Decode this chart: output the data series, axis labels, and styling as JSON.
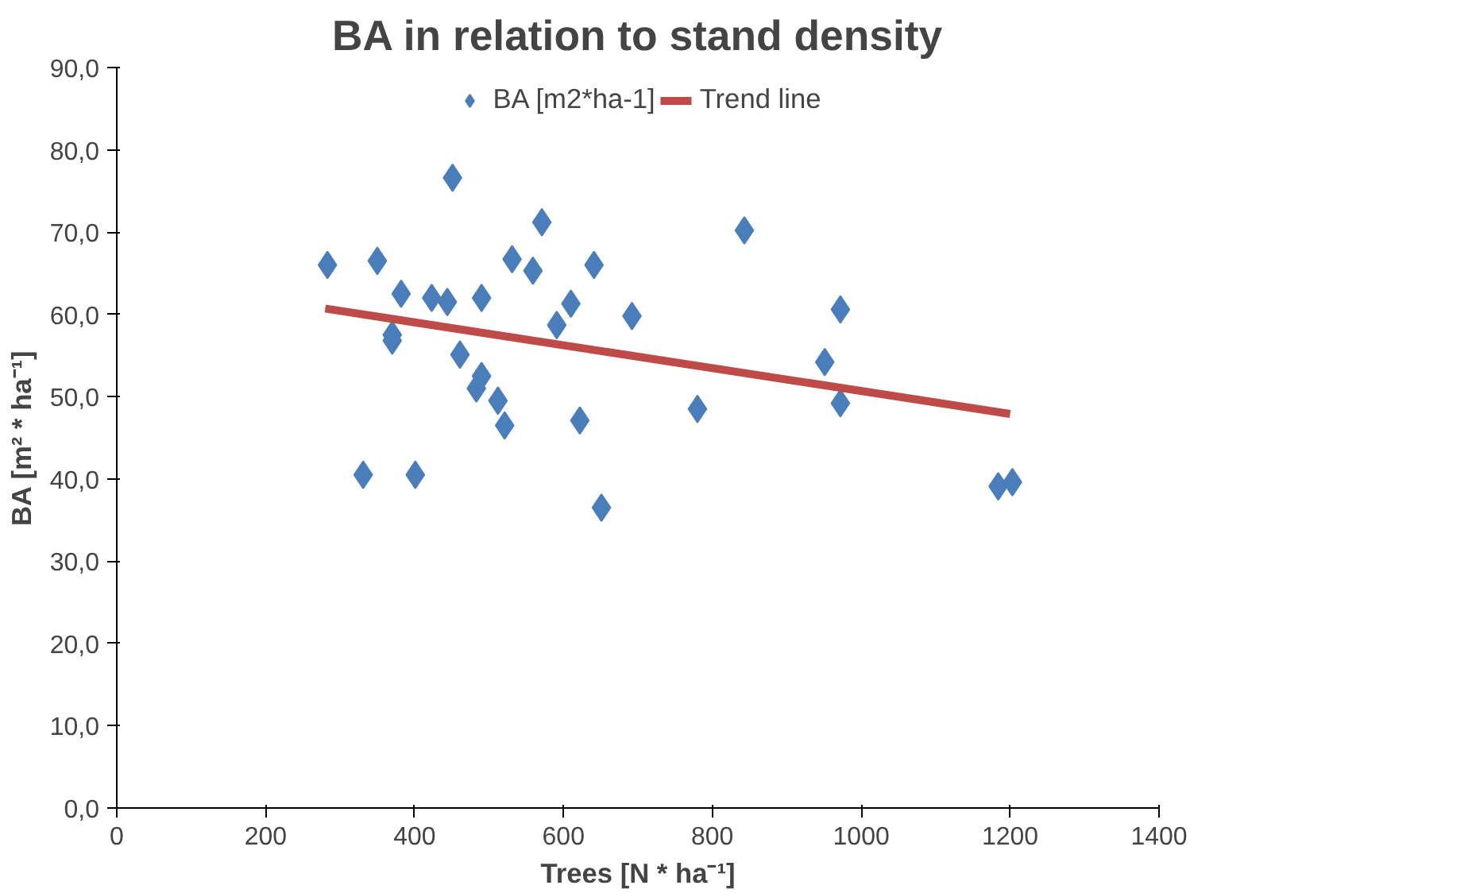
{
  "chart_data": {
    "type": "scatter",
    "title": "BA in relation to stand density",
    "xlabel": "Trees [N * ha⁻¹]",
    "ylabel": "BA [m² * ha⁻¹]",
    "xlim": [
      0,
      1400
    ],
    "xticks": [
      0,
      200,
      400,
      600,
      800,
      1000,
      1200,
      1400
    ],
    "ylim": [
      0,
      90
    ],
    "yticks": [
      {
        "value": 0,
        "label": "0,0"
      },
      {
        "value": 10,
        "label": "10,0"
      },
      {
        "value": 20,
        "label": "20,0"
      },
      {
        "value": 30,
        "label": "30,0"
      },
      {
        "value": 40,
        "label": "40,0"
      },
      {
        "value": 50,
        "label": "50,0"
      },
      {
        "value": 60,
        "label": "60,0"
      },
      {
        "value": 70,
        "label": "70,0"
      },
      {
        "value": 80,
        "label": "80,0"
      },
      {
        "value": 90,
        "label": "90,0"
      }
    ],
    "grid": false,
    "legend": "top",
    "series": [
      {
        "name": "BA [m2*ha-1]",
        "color": "#4a7ebb",
        "marker": "diamond",
        "x": [
          283,
          350,
          382,
          370,
          370,
          423,
          444,
          451,
          490,
          461,
          490,
          483,
          512,
          521,
          531,
          559,
          571,
          591,
          610,
          641,
          622,
          651,
          692,
          331,
          401,
          780,
          843,
          951,
          972,
          972,
          1184,
          1203
        ],
        "values": [
          66.0,
          66.5,
          62.5,
          57.5,
          56.8,
          62.0,
          61.5,
          76.6,
          62.0,
          55.1,
          52.5,
          51.0,
          49.5,
          46.5,
          66.7,
          65.3,
          71.2,
          58.7,
          61.3,
          66.0,
          47.1,
          36.5,
          59.8,
          40.5,
          40.5,
          48.5,
          70.2,
          54.2,
          60.6,
          49.2,
          39.1,
          39.6
        ]
      },
      {
        "name": "Trend line",
        "color": "#be4b48",
        "type": "line",
        "marker": "none",
        "x": [
          280,
          1200
        ],
        "values": [
          60.7,
          47.9
        ]
      }
    ]
  }
}
